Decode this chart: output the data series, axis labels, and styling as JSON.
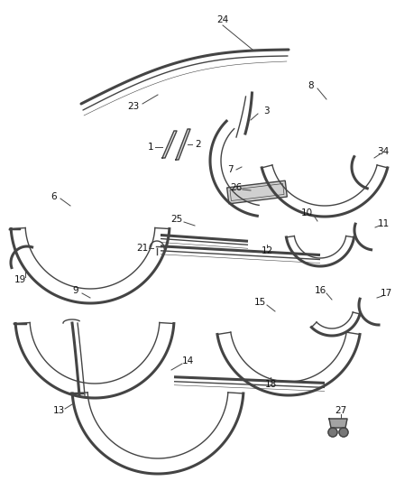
{
  "bg_color": "#ffffff",
  "line_color": "#444444",
  "label_color": "#111111",
  "lw_outer": 2.2,
  "lw_inner": 1.0,
  "lw_line": 0.7,
  "fontsize": 7.5
}
